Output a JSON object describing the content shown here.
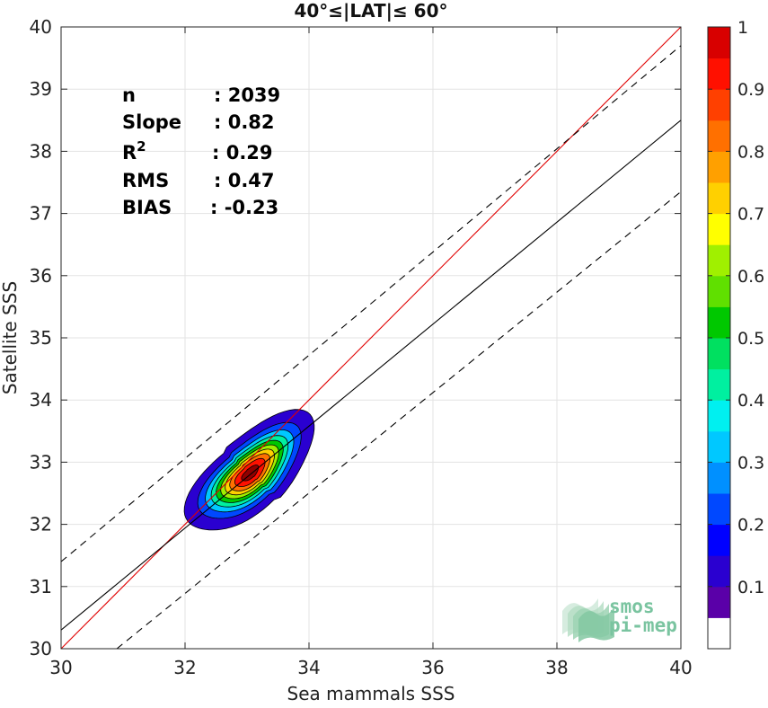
{
  "chart_data": {
    "type": "scatter",
    "title": "40°≤|LAT|≤ 60°",
    "xlabel": "Sea mammals SSS",
    "ylabel": "Satellite SSS",
    "xlim": [
      30,
      40
    ],
    "ylim": [
      30,
      40
    ],
    "x_ticks": [
      "30",
      "32",
      "34",
      "36",
      "38",
      "40"
    ],
    "y_ticks": [
      "30",
      "31",
      "32",
      "33",
      "34",
      "35",
      "36",
      "37",
      "38",
      "39",
      "40"
    ],
    "grid": true,
    "stats": [
      {
        "label": "n",
        "sep": ":",
        "value": "2039"
      },
      {
        "label": "Slope",
        "sep": ":",
        "value": "0.82"
      },
      {
        "label": "R",
        "sup": "2",
        "sep": ":",
        "value": "0.29"
      },
      {
        "label": "RMS",
        "sep": ":",
        "value": "0.47"
      },
      {
        "label": "BIAS",
        "sep": ":",
        "value": "-0.23"
      }
    ],
    "lines": [
      {
        "kind": "identity",
        "color": "#e00000",
        "style": "solid",
        "x": [
          30,
          40
        ],
        "y": [
          30,
          40
        ]
      },
      {
        "kind": "regression",
        "color": "#000000",
        "style": "solid",
        "x": [
          30,
          40
        ],
        "y": [
          30.3,
          38.5
        ]
      },
      {
        "kind": "upper-bound",
        "color": "#000000",
        "style": "dashed",
        "x": [
          30,
          40
        ],
        "y": [
          31.4,
          39.7
        ]
      },
      {
        "kind": "lower-bound",
        "color": "#000000",
        "style": "dashed",
        "x": [
          30.9,
          40
        ],
        "y": [
          30,
          37.35
        ]
      }
    ],
    "density": {
      "center": [
        33.05,
        32.82
      ],
      "spread_along": 1.25,
      "spread_across": 0.62,
      "angle_deg": 42,
      "levels": [
        0.05,
        0.15,
        0.25,
        0.35,
        0.45,
        0.55,
        0.65,
        0.75,
        0.85,
        0.95
      ]
    },
    "colorbar": {
      "range": [
        0,
        1
      ],
      "tick_labels": [
        "0.1",
        "0.2",
        "0.3",
        "0.4",
        "0.5",
        "0.6",
        "0.7",
        "0.8",
        "0.9",
        "1"
      ],
      "tick_values": [
        0.1,
        0.2,
        0.3,
        0.4,
        0.5,
        0.6,
        0.7,
        0.8,
        0.9,
        1.0
      ],
      "colors": [
        "#ffffff",
        "#5a00a8",
        "#2a00d0",
        "#0000ff",
        "#0048ff",
        "#0090ff",
        "#00c8ff",
        "#00f0f0",
        "#00f0a0",
        "#00e060",
        "#00c800",
        "#60e000",
        "#a0f000",
        "#ffff00",
        "#ffd000",
        "#ffa000",
        "#ff7000",
        "#ff4000",
        "#ff1000",
        "#d80000",
        "#900000"
      ]
    }
  },
  "logo": {
    "line1": "smos",
    "line2": "pi-mep"
  }
}
